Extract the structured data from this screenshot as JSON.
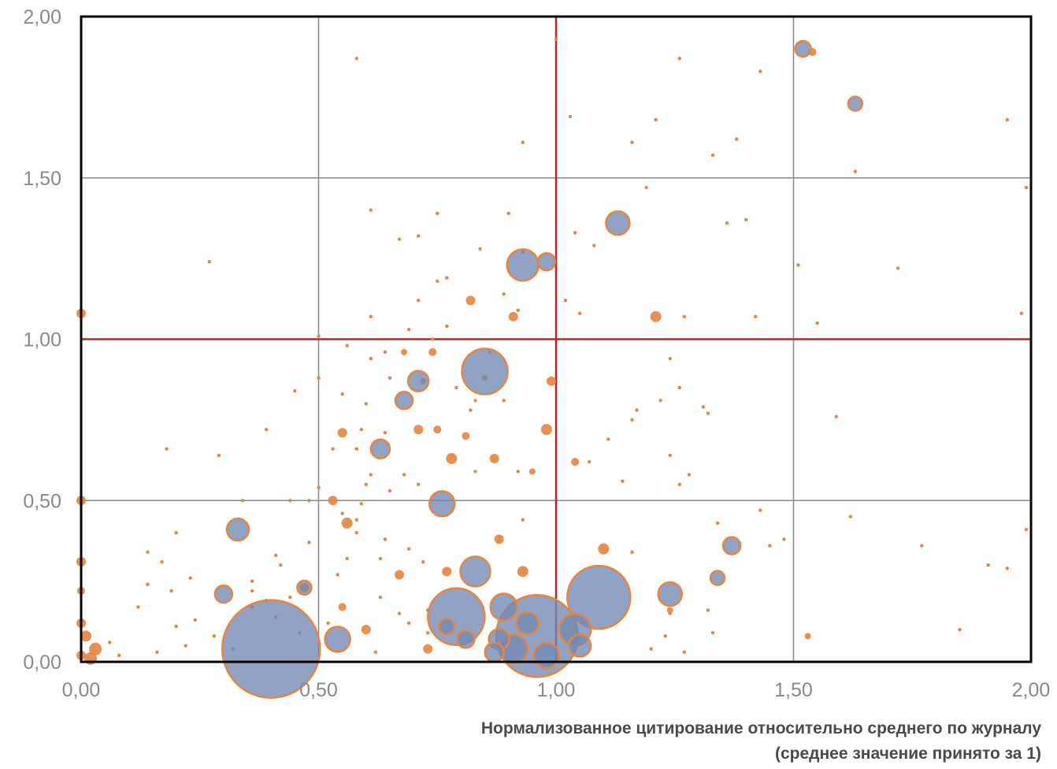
{
  "chart_data": {
    "type": "scatter",
    "subtype": "bubble",
    "title": "",
    "xlabel": [
      "Нормализованное цитирование относительно среднего по журналу",
      "(среднее значение принято за 1)"
    ],
    "ylabel": "",
    "xlim": [
      0,
      2
    ],
    "ylim": [
      0,
      2
    ],
    "x_ticks": [
      "0,00",
      "0,50",
      "1,00",
      "1,50",
      "2,00"
    ],
    "y_ticks": [
      "0,00",
      "0,50",
      "1,00",
      "1,50",
      "2,00"
    ],
    "grid": true,
    "reference_lines": {
      "x": 1.0,
      "y": 1.0,
      "color": "#c8211e"
    },
    "colors": {
      "bubble_fill": "#7189b5",
      "bubble_stroke": "#e8843c",
      "point": "#e8843c",
      "grid": "#8a8a8a",
      "axis": "#000000"
    },
    "bubbles": [
      {
        "x": 0.4,
        "y": 0.04,
        "r": 62
      },
      {
        "x": 1.09,
        "y": 0.2,
        "r": 40
      },
      {
        "x": 0.96,
        "y": 0.08,
        "r": 52
      },
      {
        "x": 0.79,
        "y": 0.14,
        "r": 36
      },
      {
        "x": 0.85,
        "y": 0.9,
        "r": 29
      },
      {
        "x": 0.93,
        "y": 1.23,
        "r": 20
      },
      {
        "x": 1.13,
        "y": 1.36,
        "r": 15
      },
      {
        "x": 0.76,
        "y": 0.49,
        "r": 16
      },
      {
        "x": 0.83,
        "y": 0.28,
        "r": 19
      },
      {
        "x": 0.54,
        "y": 0.07,
        "r": 16
      },
      {
        "x": 1.24,
        "y": 0.21,
        "r": 15
      },
      {
        "x": 0.33,
        "y": 0.41,
        "r": 14
      },
      {
        "x": 0.71,
        "y": 0.87,
        "r": 13
      },
      {
        "x": 0.63,
        "y": 0.66,
        "r": 12
      },
      {
        "x": 0.68,
        "y": 0.81,
        "r": 11
      },
      {
        "x": 1.37,
        "y": 0.36,
        "r": 11
      },
      {
        "x": 0.3,
        "y": 0.21,
        "r": 11
      },
      {
        "x": 0.98,
        "y": 1.24,
        "r": 11
      },
      {
        "x": 1.52,
        "y": 1.9,
        "r": 10
      },
      {
        "x": 1.63,
        "y": 1.73,
        "r": 9
      },
      {
        "x": 0.89,
        "y": 0.17,
        "r": 17
      },
      {
        "x": 1.04,
        "y": 0.1,
        "r": 20
      },
      {
        "x": 0.91,
        "y": 0.04,
        "r": 18
      },
      {
        "x": 0.98,
        "y": 0.02,
        "r": 16
      },
      {
        "x": 0.94,
        "y": 0.12,
        "r": 14
      },
      {
        "x": 1.05,
        "y": 0.05,
        "r": 14
      },
      {
        "x": 0.88,
        "y": 0.07,
        "r": 13
      },
      {
        "x": 0.87,
        "y": 0.03,
        "r": 12
      },
      {
        "x": 0.81,
        "y": 0.07,
        "r": 11
      },
      {
        "x": 0.77,
        "y": 0.11,
        "r": 10
      },
      {
        "x": 1.34,
        "y": 0.26,
        "r": 9
      },
      {
        "x": 0.47,
        "y": 0.23,
        "r": 9
      }
    ],
    "points": [
      {
        "x": 0.0,
        "y": 1.08,
        "r": 6
      },
      {
        "x": 0.0,
        "y": 0.5,
        "r": 6
      },
      {
        "x": 0.0,
        "y": 0.31,
        "r": 6
      },
      {
        "x": 0.0,
        "y": 0.22,
        "r": 5
      },
      {
        "x": 0.0,
        "y": 0.12,
        "r": 6
      },
      {
        "x": 0.01,
        "y": 0.08,
        "r": 7
      },
      {
        "x": 0.03,
        "y": 0.04,
        "r": 8
      },
      {
        "x": 0.02,
        "y": 0.01,
        "r": 8
      },
      {
        "x": 0.0,
        "y": 0.02,
        "r": 6
      },
      {
        "x": 1.21,
        "y": 1.07,
        "r": 7
      },
      {
        "x": 0.99,
        "y": 0.87,
        "r": 6
      },
      {
        "x": 0.98,
        "y": 0.72,
        "r": 7
      },
      {
        "x": 0.91,
        "y": 1.07,
        "r": 6
      },
      {
        "x": 0.82,
        "y": 1.12,
        "r": 6
      },
      {
        "x": 0.74,
        "y": 0.96,
        "r": 5
      },
      {
        "x": 0.55,
        "y": 0.71,
        "r": 6
      },
      {
        "x": 0.71,
        "y": 0.72,
        "r": 6
      },
      {
        "x": 0.75,
        "y": 0.72,
        "r": 5
      },
      {
        "x": 0.81,
        "y": 0.7,
        "r": 5
      },
      {
        "x": 0.78,
        "y": 0.63,
        "r": 7
      },
      {
        "x": 0.87,
        "y": 0.63,
        "r": 6
      },
      {
        "x": 0.56,
        "y": 0.43,
        "r": 7
      },
      {
        "x": 0.88,
        "y": 0.38,
        "r": 6
      },
      {
        "x": 1.1,
        "y": 0.35,
        "r": 7
      },
      {
        "x": 0.93,
        "y": 0.28,
        "r": 7
      },
      {
        "x": 0.67,
        "y": 0.27,
        "r": 6
      },
      {
        "x": 0.77,
        "y": 0.28,
        "r": 6
      },
      {
        "x": 0.47,
        "y": 0.23,
        "r": 6
      },
      {
        "x": 0.55,
        "y": 0.17,
        "r": 5
      },
      {
        "x": 0.6,
        "y": 0.1,
        "r": 6
      },
      {
        "x": 0.73,
        "y": 0.04,
        "r": 6
      },
      {
        "x": 0.53,
        "y": 0.5,
        "r": 6
      },
      {
        "x": 1.04,
        "y": 0.62,
        "r": 5
      },
      {
        "x": 0.95,
        "y": 0.59,
        "r": 4
      },
      {
        "x": 1.53,
        "y": 0.08,
        "r": 4
      },
      {
        "x": 1.24,
        "y": 0.16,
        "r": 4
      },
      {
        "x": 0.68,
        "y": 0.96,
        "r": 4
      },
      {
        "x": 0.72,
        "y": 0.87,
        "r": 4
      },
      {
        "x": 0.85,
        "y": 0.88,
        "r": 4
      },
      {
        "x": 1.54,
        "y": 1.89,
        "r": 5
      }
    ],
    "dots": [
      [
        0.58,
        1.87
      ],
      [
        0.27,
        1.24
      ],
      [
        1.0,
        1.93
      ],
      [
        1.26,
        1.87
      ],
      [
        1.43,
        1.83
      ],
      [
        1.95,
        1.68
      ],
      [
        1.03,
        1.69
      ],
      [
        1.21,
        1.68
      ],
      [
        0.93,
        1.61
      ],
      [
        1.16,
        1.61
      ],
      [
        1.38,
        1.62
      ],
      [
        1.33,
        1.57
      ],
      [
        1.63,
        1.52
      ],
      [
        1.99,
        1.47
      ],
      [
        1.19,
        1.47
      ],
      [
        0.61,
        1.4
      ],
      [
        0.75,
        1.39
      ],
      [
        0.9,
        1.39
      ],
      [
        1.36,
        1.36
      ],
      [
        1.4,
        1.37
      ],
      [
        0.71,
        1.32
      ],
      [
        1.04,
        1.33
      ],
      [
        0.67,
        1.31
      ],
      [
        0.84,
        1.28
      ],
      [
        0.93,
        1.27
      ],
      [
        1.08,
        1.29
      ],
      [
        1.51,
        1.23
      ],
      [
        1.72,
        1.22
      ],
      [
        0.75,
        1.18
      ],
      [
        0.77,
        1.19
      ],
      [
        0.89,
        1.14
      ],
      [
        1.02,
        1.12
      ],
      [
        0.71,
        1.12
      ],
      [
        0.92,
        1.09
      ],
      [
        1.05,
        1.08
      ],
      [
        0.61,
        1.07
      ],
      [
        1.42,
        1.07
      ],
      [
        1.27,
        1.07
      ],
      [
        1.55,
        1.05
      ],
      [
        1.98,
        1.08
      ],
      [
        0.77,
        1.04
      ],
      [
        0.69,
        1.03
      ],
      [
        0.74,
        1.0
      ],
      [
        0.56,
        0.98
      ],
      [
        0.5,
        1.01
      ],
      [
        0.64,
        0.96
      ],
      [
        0.86,
        0.96
      ],
      [
        0.61,
        0.94
      ],
      [
        1.24,
        0.94
      ],
      [
        0.65,
        0.88
      ],
      [
        0.5,
        0.88
      ],
      [
        0.79,
        0.85
      ],
      [
        0.45,
        0.84
      ],
      [
        0.55,
        0.83
      ],
      [
        0.83,
        0.81
      ],
      [
        0.89,
        0.81
      ],
      [
        0.6,
        0.8
      ],
      [
        0.82,
        0.78
      ],
      [
        1.26,
        0.85
      ],
      [
        1.17,
        0.78
      ],
      [
        1.22,
        0.81
      ],
      [
        1.31,
        0.79
      ],
      [
        1.32,
        0.77
      ],
      [
        1.16,
        0.75
      ],
      [
        1.59,
        0.76
      ],
      [
        0.39,
        0.72
      ],
      [
        0.59,
        0.72
      ],
      [
        0.64,
        0.71
      ],
      [
        1.11,
        0.69
      ],
      [
        0.53,
        0.66
      ],
      [
        0.58,
        0.66
      ],
      [
        0.18,
        0.66
      ],
      [
        0.29,
        0.64
      ],
      [
        1.07,
        0.62
      ],
      [
        1.24,
        0.64
      ],
      [
        0.61,
        0.58
      ],
      [
        0.68,
        0.58
      ],
      [
        0.83,
        0.59
      ],
      [
        0.92,
        0.59
      ],
      [
        0.71,
        0.55
      ],
      [
        0.6,
        0.55
      ],
      [
        0.65,
        0.53
      ],
      [
        0.5,
        0.54
      ],
      [
        1.28,
        0.58
      ],
      [
        1.14,
        0.56
      ],
      [
        1.26,
        0.55
      ],
      [
        0.48,
        0.5
      ],
      [
        0.59,
        0.49
      ],
      [
        0.34,
        0.5
      ],
      [
        0.44,
        0.5
      ],
      [
        0.55,
        0.46
      ],
      [
        0.58,
        0.44
      ],
      [
        0.93,
        0.44
      ],
      [
        1.34,
        0.43
      ],
      [
        1.43,
        0.47
      ],
      [
        1.62,
        0.45
      ],
      [
        0.2,
        0.4
      ],
      [
        0.58,
        0.4
      ],
      [
        0.64,
        0.38
      ],
      [
        1.48,
        0.38
      ],
      [
        1.99,
        0.41
      ],
      [
        0.48,
        0.37
      ],
      [
        0.56,
        0.32
      ],
      [
        0.63,
        0.32
      ],
      [
        0.69,
        0.35
      ],
      [
        1.16,
        0.34
      ],
      [
        1.45,
        0.36
      ],
      [
        1.77,
        0.36
      ],
      [
        0.41,
        0.33
      ],
      [
        0.42,
        0.3
      ],
      [
        0.14,
        0.34
      ],
      [
        0.17,
        0.31
      ],
      [
        0.72,
        0.31
      ],
      [
        1.91,
        0.3
      ],
      [
        1.95,
        0.29
      ],
      [
        0.54,
        0.27
      ],
      [
        0.36,
        0.25
      ],
      [
        0.23,
        0.26
      ],
      [
        0.14,
        0.24
      ],
      [
        0.19,
        0.22
      ],
      [
        0.36,
        0.22
      ],
      [
        0.44,
        0.2
      ],
      [
        0.63,
        0.2
      ],
      [
        0.67,
        0.15
      ],
      [
        0.73,
        0.16
      ],
      [
        1.24,
        0.15
      ],
      [
        1.32,
        0.16
      ],
      [
        0.41,
        0.14
      ],
      [
        0.52,
        0.12
      ],
      [
        0.24,
        0.13
      ],
      [
        0.2,
        0.11
      ],
      [
        0.69,
        0.12
      ],
      [
        1.85,
        0.1
      ],
      [
        0.28,
        0.08
      ],
      [
        0.46,
        0.09
      ],
      [
        0.73,
        0.09
      ],
      [
        1.23,
        0.08
      ],
      [
        1.33,
        0.09
      ],
      [
        0.22,
        0.05
      ],
      [
        0.32,
        0.04
      ],
      [
        0.06,
        0.06
      ],
      [
        0.08,
        0.02
      ],
      [
        0.16,
        0.03
      ],
      [
        0.62,
        0.03
      ],
      [
        1.2,
        0.04
      ],
      [
        1.27,
        0.03
      ],
      [
        0.36,
        0.17
      ],
      [
        0.39,
        0.19
      ],
      [
        0.12,
        0.17
      ]
    ]
  }
}
